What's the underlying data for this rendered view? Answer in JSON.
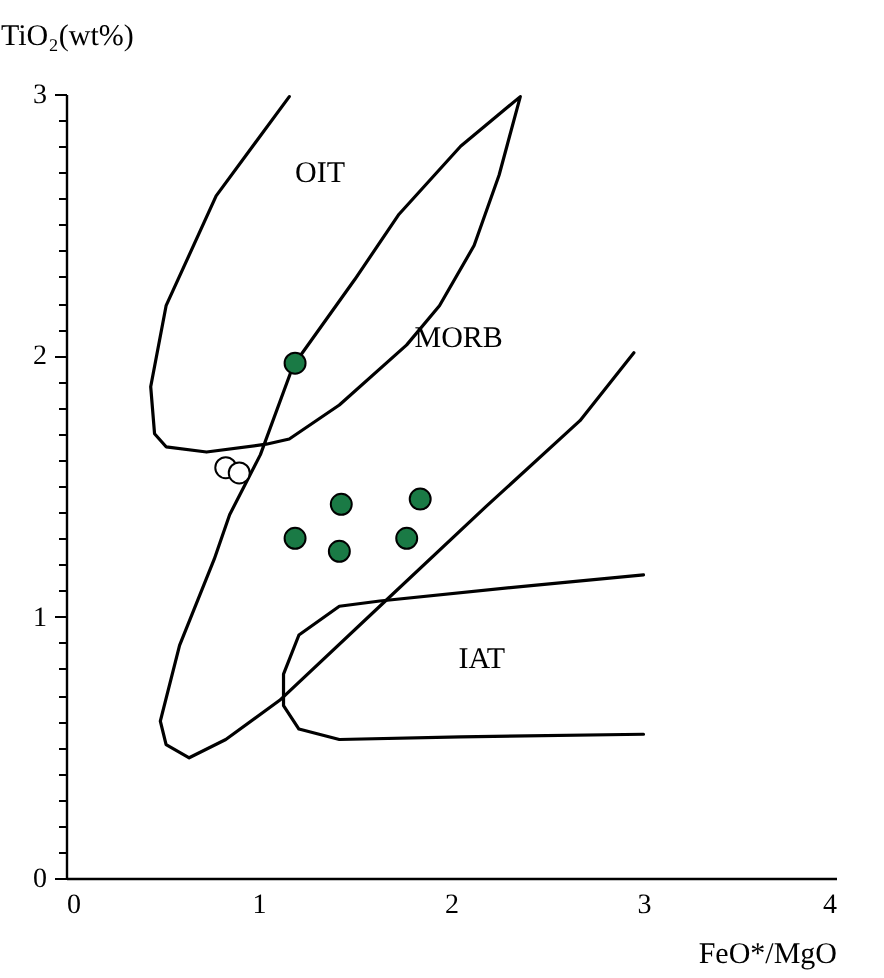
{
  "chart_data": {
    "type": "scatter",
    "xlabel": "FeO*/MgO",
    "ylabel": "TiO₂(wt%)",
    "xlim": [
      0,
      4
    ],
    "ylim": [
      0,
      3
    ],
    "xticks": [
      0,
      1,
      2,
      3,
      4
    ],
    "yticks": [
      0,
      {
        "value": 0.1,
        "label": null
      },
      {
        "value": 0.2,
        "label": null
      },
      {
        "value": 0.3,
        "label": null
      },
      {
        "value": 0.4,
        "label": null
      },
      {
        "value": 0.5,
        "label": null
      },
      {
        "value": 0.6,
        "label": null
      },
      {
        "value": 0.7,
        "label": null
      },
      {
        "value": 0.8,
        "label": null
      },
      {
        "value": 0.9,
        "label": null
      },
      1,
      {
        "value": 1.1,
        "label": null
      },
      {
        "value": 1.2,
        "label": null
      },
      {
        "value": 1.3,
        "label": null
      },
      {
        "value": 1.4,
        "label": null
      },
      {
        "value": 1.5,
        "label": null
      },
      {
        "value": 1.6,
        "label": null
      },
      {
        "value": 1.7,
        "label": null
      },
      {
        "value": 1.8,
        "label": null
      },
      {
        "value": 1.9,
        "label": null
      },
      2,
      {
        "value": 2.1,
        "label": null
      },
      {
        "value": 2.2,
        "label": null
      },
      {
        "value": 2.3,
        "label": null
      },
      {
        "value": 2.4,
        "label": null
      },
      {
        "value": 2.5,
        "label": null
      },
      {
        "value": 2.6,
        "label": null
      },
      {
        "value": 2.7,
        "label": null
      },
      {
        "value": 2.8,
        "label": null
      },
      {
        "value": 2.9,
        "label": null
      },
      3
    ],
    "series": [
      {
        "type": "line",
        "color": "#000000",
        "x": [
          1.16,
          0.78,
          0.52,
          0.44,
          0.46,
          0.52,
          0.73,
          1.04,
          1.16,
          1.42,
          1.77,
          1.94,
          2.12,
          2.25,
          2.36,
          2.05,
          1.73,
          1.5,
          1.18,
          1.01,
          0.85,
          0.77,
          0.59,
          0.49,
          0.52,
          0.64,
          0.83,
          1.11,
          1.63,
          2.18,
          2.67,
          2.95
        ],
        "values": [
          2.99,
          2.61,
          2.19,
          1.88,
          1.7,
          1.65,
          1.63,
          1.66,
          1.68,
          1.81,
          2.04,
          2.19,
          2.42,
          2.69,
          2.99,
          2.8,
          2.54,
          2.29,
          1.96,
          1.62,
          1.39,
          1.22,
          0.89,
          0.6,
          0.51,
          0.46,
          0.53,
          0.68,
          1.04,
          1.42,
          1.75,
          2.01
        ]
      },
      {
        "type": "line",
        "color": "#000000",
        "x": [
          3.0,
          2.43,
          1.63,
          1.42,
          1.21,
          1.13,
          1.13,
          1.21,
          1.42,
          2.05,
          3.0
        ],
        "values": [
          1.16,
          1.12,
          1.06,
          1.04,
          0.93,
          0.78,
          0.66,
          0.57,
          0.53,
          0.54,
          0.55
        ]
      },
      {
        "marker": "circle",
        "color": "#1a7a45",
        "x": [
          1.19,
          1.19,
          1.43,
          1.42,
          1.77,
          1.84
        ],
        "values": [
          1.97,
          1.3,
          1.43,
          1.25,
          1.3,
          1.45
        ]
      },
      {
        "marker": "circle",
        "color": "#ffffff",
        "x": [
          0.83,
          0.9
        ],
        "values": [
          1.57,
          1.55
        ]
      }
    ],
    "annotations": [
      "OIT",
      "MORB",
      "IAT"
    ]
  }
}
